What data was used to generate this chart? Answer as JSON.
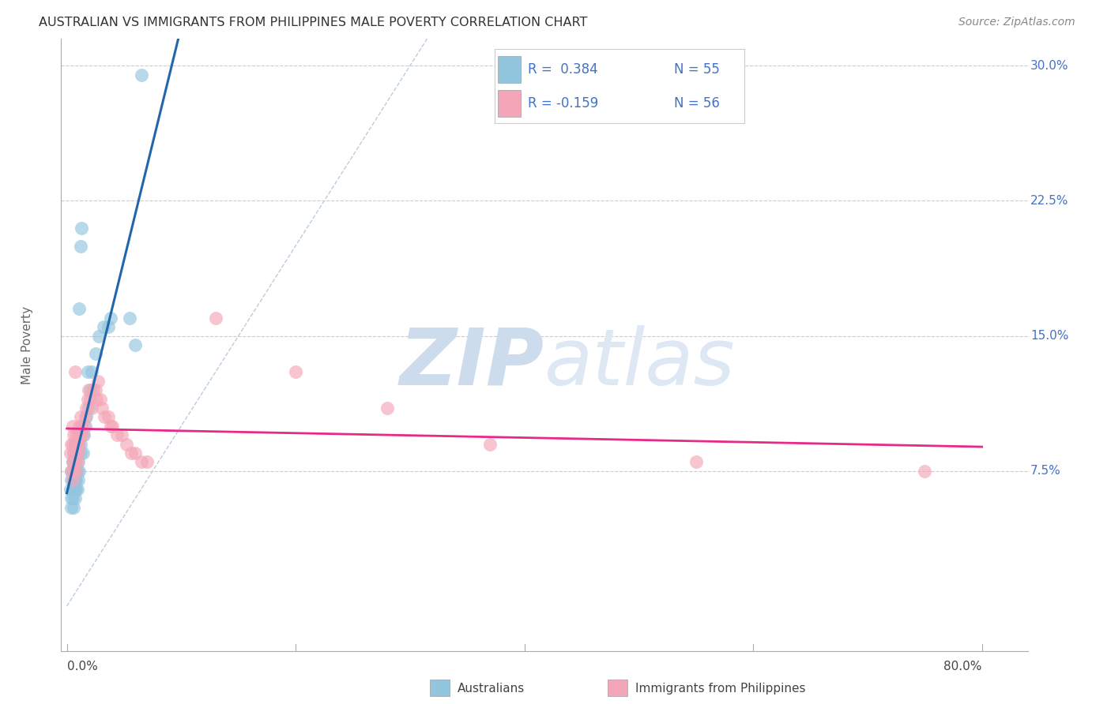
{
  "title": "AUSTRALIAN VS IMMIGRANTS FROM PHILIPPINES MALE POVERTY CORRELATION CHART",
  "source": "Source: ZipAtlas.com",
  "ylabel": "Male Poverty",
  "y_ticks": [
    0.075,
    0.15,
    0.225,
    0.3
  ],
  "y_tick_labels": [
    "7.5%",
    "15.0%",
    "22.5%",
    "30.0%"
  ],
  "x_ticks": [
    0.0,
    0.2,
    0.4,
    0.6,
    0.8
  ],
  "x_tick_labels": [
    "0.0%",
    "",
    "",
    "",
    "80.0%"
  ],
  "x_range": [
    -0.005,
    0.84
  ],
  "y_range": [
    -0.025,
    0.315
  ],
  "color_blue": "#92c5de",
  "color_pink": "#f4a6b8",
  "color_blue_line": "#2166ac",
  "color_pink_line": "#e7298a",
  "color_diag": "#bbccdd",
  "color_grid": "#cccccc",
  "watermark_zip": "ZIP",
  "watermark_atlas": "atlas",
  "label_blue": "Australians",
  "label_pink": "Immigrants from Philippines",
  "legend_text_blue": "R =  0.384   N = 55",
  "legend_text_pink": "R = -0.159   N = 56",
  "blue_x": [
    0.003,
    0.004,
    0.004,
    0.004,
    0.004,
    0.005,
    0.005,
    0.005,
    0.005,
    0.005,
    0.006,
    0.006,
    0.006,
    0.006,
    0.006,
    0.006,
    0.007,
    0.007,
    0.007,
    0.007,
    0.007,
    0.007,
    0.008,
    0.008,
    0.008,
    0.008,
    0.009,
    0.009,
    0.009,
    0.01,
    0.01,
    0.01,
    0.011,
    0.011,
    0.012,
    0.012,
    0.012,
    0.013,
    0.013,
    0.014,
    0.015,
    0.016,
    0.017,
    0.018,
    0.019,
    0.02,
    0.022,
    0.025,
    0.028,
    0.032,
    0.036,
    0.038,
    0.055,
    0.06,
    0.065
  ],
  "blue_y": [
    0.065,
    0.055,
    0.06,
    0.07,
    0.075,
    0.06,
    0.065,
    0.07,
    0.075,
    0.08,
    0.055,
    0.065,
    0.07,
    0.075,
    0.08,
    0.085,
    0.06,
    0.065,
    0.07,
    0.075,
    0.08,
    0.09,
    0.065,
    0.07,
    0.075,
    0.085,
    0.065,
    0.075,
    0.085,
    0.07,
    0.08,
    0.09,
    0.075,
    0.165,
    0.085,
    0.09,
    0.2,
    0.095,
    0.21,
    0.085,
    0.095,
    0.1,
    0.105,
    0.13,
    0.11,
    0.12,
    0.13,
    0.14,
    0.15,
    0.155,
    0.155,
    0.16,
    0.16,
    0.145,
    0.295
  ],
  "pink_x": [
    0.003,
    0.004,
    0.004,
    0.005,
    0.005,
    0.005,
    0.005,
    0.006,
    0.006,
    0.006,
    0.007,
    0.007,
    0.007,
    0.008,
    0.008,
    0.008,
    0.009,
    0.009,
    0.01,
    0.01,
    0.011,
    0.011,
    0.012,
    0.012,
    0.013,
    0.014,
    0.015,
    0.016,
    0.017,
    0.018,
    0.019,
    0.02,
    0.022,
    0.023,
    0.025,
    0.026,
    0.027,
    0.029,
    0.031,
    0.033,
    0.036,
    0.038,
    0.04,
    0.044,
    0.048,
    0.052,
    0.056,
    0.06,
    0.065,
    0.07,
    0.13,
    0.2,
    0.28,
    0.37,
    0.55,
    0.75
  ],
  "pink_y": [
    0.085,
    0.075,
    0.09,
    0.07,
    0.08,
    0.09,
    0.1,
    0.075,
    0.085,
    0.095,
    0.08,
    0.09,
    0.13,
    0.075,
    0.085,
    0.095,
    0.08,
    0.09,
    0.085,
    0.095,
    0.09,
    0.1,
    0.095,
    0.105,
    0.1,
    0.095,
    0.1,
    0.105,
    0.11,
    0.115,
    0.12,
    0.115,
    0.11,
    0.12,
    0.12,
    0.115,
    0.125,
    0.115,
    0.11,
    0.105,
    0.105,
    0.1,
    0.1,
    0.095,
    0.095,
    0.09,
    0.085,
    0.085,
    0.08,
    0.08,
    0.16,
    0.13,
    0.11,
    0.09,
    0.08,
    0.075
  ]
}
